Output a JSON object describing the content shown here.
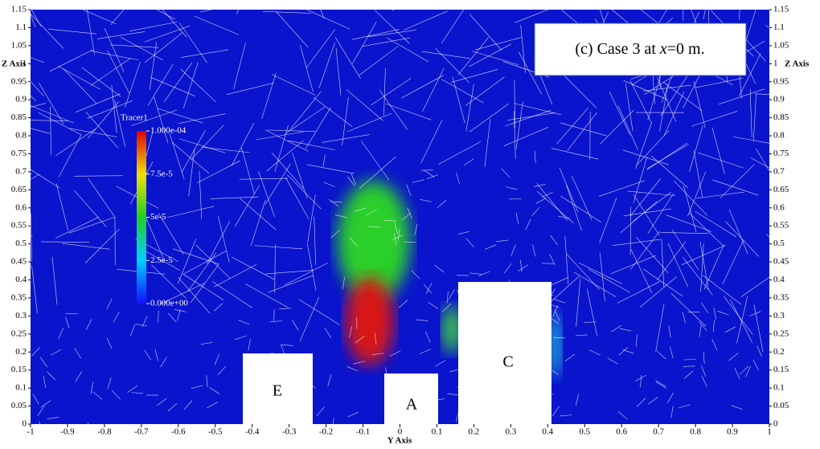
{
  "chart_data": {
    "type": "field",
    "annotation": {
      "prefix": "(c) Case 3 at ",
      "variable": "x",
      "suffix": "=0 m."
    },
    "x_label": "Y Axis",
    "y_label": "Z Axis",
    "xlim": [
      -1,
      1
    ],
    "xticks": [
      -1,
      -0.9,
      -0.8,
      -0.7,
      -0.6,
      -0.5,
      -0.4,
      -0.3,
      -0.2,
      -0.1,
      0,
      0.1,
      0.2,
      0.3,
      0.4,
      0.5,
      0.6,
      0.7,
      0.8,
      0.9,
      1
    ],
    "ylim": [
      0,
      1.15
    ],
    "yticks": [
      0,
      0.05,
      0.1,
      0.15,
      0.2,
      0.25,
      0.3,
      0.35,
      0.4,
      0.45,
      0.5,
      0.55,
      0.6,
      0.65,
      0.7,
      0.75,
      0.8,
      0.85,
      0.9,
      0.95,
      1,
      1.05,
      1.1,
      1.15
    ],
    "colorbar": {
      "title": "Tracer1",
      "lim": [
        0,
        0.0001
      ],
      "ticks": [
        {
          "value": 0.0001,
          "label": "1.000e-04"
        },
        {
          "value": 7.5e-05,
          "label": "7.5e-5"
        },
        {
          "value": 5e-05,
          "label": "5e-5"
        },
        {
          "value": 2.5e-05,
          "label": "2.5e-5"
        },
        {
          "value": 0,
          "label": "0.000e+00"
        }
      ]
    },
    "buildings": [
      "E",
      "A",
      "C"
    ]
  }
}
